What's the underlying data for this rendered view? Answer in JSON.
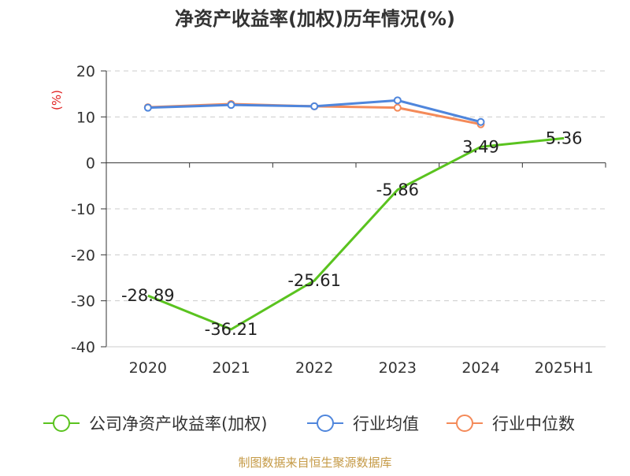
{
  "chart_data": {
    "type": "line",
    "title": "净资产收益率(加权)历年情况(%)",
    "ylabel": "(%)",
    "categories": [
      "2020",
      "2021",
      "2022",
      "2023",
      "2024",
      "2025H1"
    ],
    "ylim": [
      -40,
      20
    ],
    "yticks": [
      20,
      10,
      0,
      -10,
      -20,
      -30,
      -40
    ],
    "grid": true,
    "legend_position": "bottom",
    "series": [
      {
        "name": "公司净资产收益率(加权)",
        "color": "#5ac31f",
        "values": [
          -28.89,
          -36.21,
          -25.61,
          -5.86,
          3.49,
          5.36
        ],
        "labels": [
          "-28.89",
          "-36.21",
          "-25.61",
          "-5.86",
          "3.49",
          "5.36"
        ]
      },
      {
        "name": "行业均值",
        "color": "#4f86dc",
        "values": [
          12.0,
          12.6,
          12.3,
          13.6,
          8.9,
          null
        ]
      },
      {
        "name": "行业中位数",
        "color": "#f48a59",
        "values": [
          12.1,
          12.8,
          12.3,
          12.0,
          8.4,
          null
        ]
      }
    ]
  },
  "footer": {
    "source": "制图数据来自恒生聚源数据库"
  },
  "colors": {
    "title": "#333333",
    "ylabel": "#e02020",
    "source": "#c59a46",
    "axis": "#333333",
    "grid": "#cccccc"
  }
}
